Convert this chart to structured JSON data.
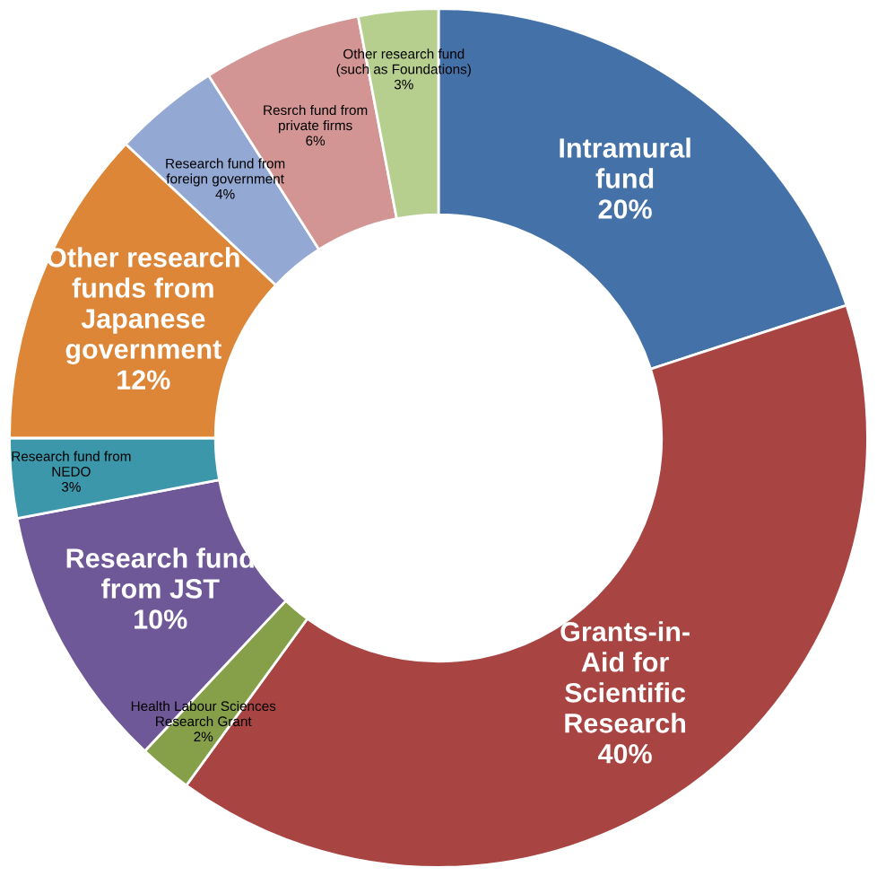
{
  "chart_data": {
    "type": "donut",
    "categories": [
      "Intramural\nfund",
      "Grants-in-\nAid for\nScientific\nResearch",
      "Health Labour Sciences\nResearch Grant",
      "Research fund\nfrom JST",
      "Research fund from\nNEDO",
      "Other research\nfunds from\nJapanese\ngovernment",
      "Research fund from\nforeign government",
      "Resrch fund from\nprivate firms",
      "Other research fund\n(such as Foundations)"
    ],
    "values": [
      20,
      40,
      2,
      10,
      3,
      12,
      4,
      6,
      3
    ],
    "colors": [
      "#4472a8",
      "#a84442",
      "#86a04a",
      "#6f5897",
      "#3c97ab",
      "#dd8638",
      "#93a9d3",
      "#d39594",
      "#b6cf8f"
    ],
    "value_labels": [
      "20%",
      "40%",
      "2%",
      "10%",
      "3%",
      "12%",
      "4%",
      "6%",
      "3%"
    ],
    "legend": false
  }
}
